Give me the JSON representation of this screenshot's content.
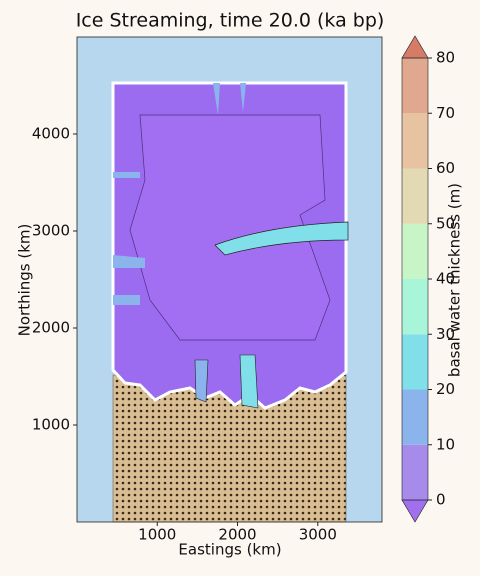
{
  "chart_data": {
    "type": "contour",
    "title": "Ice Streaming, time 20.0 (ka bp)",
    "xlabel": "Eastings (km)",
    "ylabel": "Northings (km)",
    "xlim": [
      0,
      3800
    ],
    "ylim": [
      0,
      5000
    ],
    "xticks": [
      1000,
      2000,
      3000
    ],
    "yticks": [
      1000,
      2000,
      3000,
      4000
    ],
    "colorbar": {
      "label": "basal water thickness (m)",
      "levels": [
        0,
        10,
        20,
        30,
        40,
        50,
        60,
        70,
        80
      ],
      "colors": [
        "#a78bea",
        "#8cb4ec",
        "#80dfe8",
        "#a8f5da",
        "#c8f5c6",
        "#e3d9b3",
        "#e7c3a1",
        "#dfa88f"
      ],
      "extend": "both",
      "under_color": "#a070ee",
      "over_color": "#d67b66"
    }
  }
}
